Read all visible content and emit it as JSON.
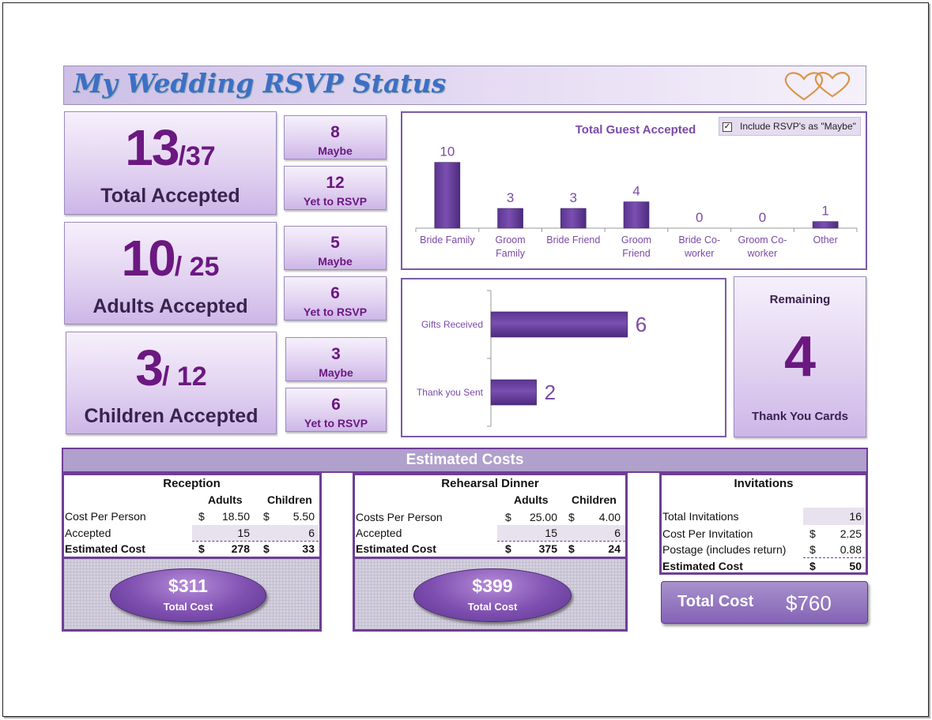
{
  "title": "My Wedding RSVP Status",
  "summary": [
    {
      "accepted": "13",
      "total": "/37",
      "label": "Total Accepted",
      "maybe_value": "8",
      "maybe_label": "Maybe",
      "yet_value": "12",
      "yet_label": "Yet to RSVP"
    },
    {
      "accepted": "10",
      "total": "/ 25",
      "label": "Adults Accepted",
      "maybe_value": "5",
      "maybe_label": "Maybe",
      "yet_value": "6",
      "yet_label": "Yet to RSVP"
    },
    {
      "accepted": "3",
      "total": "/ 12",
      "label": "Children Accepted",
      "maybe_value": "3",
      "maybe_label": "Maybe",
      "yet_value": "6",
      "yet_label": "Yet to RSVP"
    }
  ],
  "guest_chart": {
    "title": "Total Guest Accepted",
    "checkbox_label": "Include RSVP's as \"Maybe\"",
    "checkbox_checked": true,
    "checkbox_mark": "✓",
    "type": "bar",
    "categories": [
      [
        "Bride Family"
      ],
      [
        "Groom",
        "Family"
      ],
      [
        "Bride Friend"
      ],
      [
        "Groom",
        "Friend"
      ],
      [
        "Bride Co-",
        "worker"
      ],
      [
        "Groom Co-",
        "worker"
      ],
      [
        "Other"
      ]
    ],
    "values": [
      10,
      3,
      3,
      4,
      0,
      0,
      1
    ],
    "ylim": [
      0,
      12
    ],
    "bar_color": "#7a4fb0"
  },
  "gifts_chart": {
    "type": "bar",
    "categories": [
      "Gifts Received",
      "Thank you Sent"
    ],
    "values": [
      6,
      2
    ],
    "xlim": [
      0,
      10
    ],
    "bar_color": "#7a4fb0"
  },
  "remaining": {
    "label_top": "Remaining",
    "value": "4",
    "label_bottom": "Thank You Cards"
  },
  "estimated_costs": {
    "header": "Estimated Costs",
    "reception": {
      "title": "Reception",
      "col_adults": "Adults",
      "col_children": "Children",
      "row1_label": "Cost Per Person",
      "adult_cost": "18.50",
      "child_cost": "5.50",
      "row2_label": "Accepted",
      "adult_accepted": "15",
      "child_accepted": "6",
      "row3_label": "Estimated Cost",
      "adult_est": "278",
      "child_est": "33",
      "total_amount": "$311",
      "total_label": "Total Cost"
    },
    "rehearsal": {
      "title": "Rehearsal Dinner",
      "col_adults": "Adults",
      "col_children": "Children",
      "row1_label": "Costs Per Person",
      "adult_cost": "25.00",
      "child_cost": "4.00",
      "row2_label": "Accepted",
      "adult_accepted": "15",
      "child_accepted": "6",
      "row3_label": "Estimated Cost",
      "adult_est": "375",
      "child_est": "24",
      "total_amount": "$399",
      "total_label": "Total Cost"
    },
    "invitations": {
      "title": "Invitations",
      "row1_label": "Total Invitations",
      "row1_value": "16",
      "row2_label": "Cost Per Invitation",
      "row2_value": "2.25",
      "row3_label": "Postage (includes return)",
      "row3_value": "0.88",
      "row4_label": "Estimated Cost",
      "row4_value": "50"
    },
    "currency": "$",
    "grand_total_label": "Total Cost",
    "grand_total_value": "$760"
  }
}
